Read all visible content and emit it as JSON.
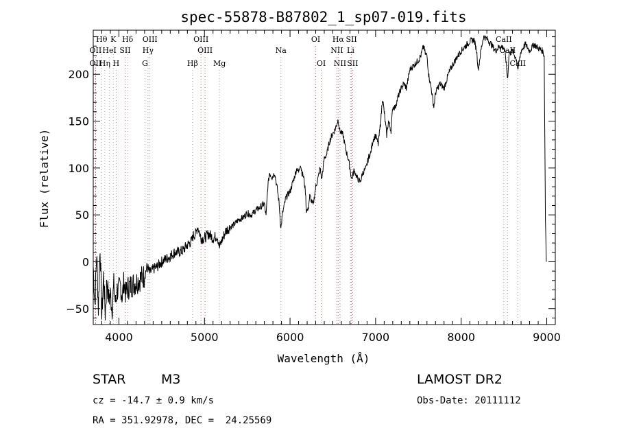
{
  "chart_data": {
    "type": "line",
    "title": "spec-55878-B87802_1_sp07-019.fits",
    "xlabel": "Wavelength (Å)",
    "ylabel": "Flux (relative)",
    "xlim": [
      3700,
      9100
    ],
    "ylim": [
      -67,
      247
    ],
    "xticks": [
      4000,
      5000,
      6000,
      7000,
      8000,
      9000
    ],
    "yticks": [
      -50,
      0,
      50,
      100,
      150,
      200
    ],
    "grid": false,
    "series": [
      {
        "name": "flux",
        "points": [
          [
            3700,
            -5
          ],
          [
            3720,
            -45
          ],
          [
            3740,
            10
          ],
          [
            3760,
            -50
          ],
          [
            3780,
            18
          ],
          [
            3800,
            -60
          ],
          [
            3820,
            -15
          ],
          [
            3840,
            -55
          ],
          [
            3860,
            -20
          ],
          [
            3880,
            -40
          ],
          [
            3900,
            -35
          ],
          [
            3920,
            -50
          ],
          [
            3940,
            -25
          ],
          [
            3960,
            -45
          ],
          [
            3980,
            -30
          ],
          [
            4000,
            -30
          ],
          [
            4020,
            -25
          ],
          [
            4040,
            -38
          ],
          [
            4060,
            -20
          ],
          [
            4080,
            -35
          ],
          [
            4100,
            -28
          ],
          [
            4150,
            -25
          ],
          [
            4200,
            -22
          ],
          [
            4250,
            -18
          ],
          [
            4300,
            -15
          ],
          [
            4330,
            -5
          ],
          [
            4360,
            -12
          ],
          [
            4400,
            -8
          ],
          [
            4450,
            -5
          ],
          [
            4500,
            0
          ],
          [
            4550,
            3
          ],
          [
            4600,
            6
          ],
          [
            4650,
            10
          ],
          [
            4700,
            10
          ],
          [
            4750,
            12
          ],
          [
            4800,
            18
          ],
          [
            4850,
            22
          ],
          [
            4870,
            28
          ],
          [
            4900,
            30
          ],
          [
            4920,
            38
          ],
          [
            4960,
            25
          ],
          [
            5000,
            25
          ],
          [
            5050,
            30
          ],
          [
            5100,
            25
          ],
          [
            5150,
            28
          ],
          [
            5175,
            15
          ],
          [
            5200,
            22
          ],
          [
            5250,
            33
          ],
          [
            5300,
            37
          ],
          [
            5350,
            40
          ],
          [
            5400,
            45
          ],
          [
            5450,
            47
          ],
          [
            5500,
            52
          ],
          [
            5550,
            50
          ],
          [
            5600,
            55
          ],
          [
            5650,
            58
          ],
          [
            5700,
            62
          ],
          [
            5720,
            48
          ],
          [
            5740,
            80
          ],
          [
            5760,
            95
          ],
          [
            5790,
            90
          ],
          [
            5820,
            95
          ],
          [
            5850,
            78
          ],
          [
            5870,
            65
          ],
          [
            5893,
            35
          ],
          [
            5910,
            50
          ],
          [
            5950,
            68
          ],
          [
            6000,
            75
          ],
          [
            6050,
            90
          ],
          [
            6080,
            100
          ],
          [
            6100,
            95
          ],
          [
            6120,
            105
          ],
          [
            6140,
            95
          ],
          [
            6160,
            90
          ],
          [
            6180,
            75
          ],
          [
            6190,
            55
          ],
          [
            6210,
            55
          ],
          [
            6230,
            70
          ],
          [
            6270,
            60
          ],
          [
            6300,
            80
          ],
          [
            6330,
            90
          ],
          [
            6350,
            100
          ],
          [
            6370,
            88
          ],
          [
            6400,
            110
          ],
          [
            6430,
            115
          ],
          [
            6460,
            128
          ],
          [
            6490,
            135
          ],
          [
            6520,
            140
          ],
          [
            6540,
            145
          ],
          [
            6563,
            152
          ],
          [
            6580,
            140
          ],
          [
            6620,
            135
          ],
          [
            6650,
            120
          ],
          [
            6680,
            110
          ],
          [
            6700,
            100
          ],
          [
            6720,
            88
          ],
          [
            6750,
            98
          ],
          [
            6780,
            90
          ],
          [
            6820,
            85
          ],
          [
            6850,
            95
          ],
          [
            6890,
            100
          ],
          [
            6920,
            112
          ],
          [
            6940,
            115
          ],
          [
            6970,
            130
          ],
          [
            7000,
            135
          ],
          [
            7030,
            125
          ],
          [
            7060,
            150
          ],
          [
            7080,
            175
          ],
          [
            7100,
            160
          ],
          [
            7130,
            135
          ],
          [
            7150,
            150
          ],
          [
            7180,
            140
          ],
          [
            7200,
            165
          ],
          [
            7230,
            165
          ],
          [
            7260,
            175
          ],
          [
            7300,
            185
          ],
          [
            7330,
            190
          ],
          [
            7360,
            185
          ],
          [
            7400,
            205
          ],
          [
            7450,
            210
          ],
          [
            7500,
            215
          ],
          [
            7530,
            220
          ],
          [
            7560,
            230
          ],
          [
            7580,
            222
          ],
          [
            7600,
            220
          ],
          [
            7620,
            200
          ],
          [
            7650,
            185
          ],
          [
            7680,
            165
          ],
          [
            7700,
            180
          ],
          [
            7750,
            190
          ],
          [
            7800,
            185
          ],
          [
            7850,
            200
          ],
          [
            7900,
            210
          ],
          [
            7950,
            218
          ],
          [
            8000,
            225
          ],
          [
            8050,
            230
          ],
          [
            8100,
            235
          ],
          [
            8150,
            237
          ],
          [
            8180,
            225
          ],
          [
            8200,
            205
          ],
          [
            8230,
            225
          ],
          [
            8260,
            240
          ],
          [
            8300,
            238
          ],
          [
            8350,
            232
          ],
          [
            8400,
            225
          ],
          [
            8450,
            230
          ],
          [
            8500,
            228
          ],
          [
            8520,
            218
          ],
          [
            8542,
            195
          ],
          [
            8560,
            222
          ],
          [
            8600,
            225
          ],
          [
            8650,
            215
          ],
          [
            8662,
            205
          ],
          [
            8700,
            225
          ],
          [
            8750,
            232
          ],
          [
            8800,
            225
          ],
          [
            8850,
            232
          ],
          [
            8900,
            228
          ],
          [
            8950,
            225
          ],
          [
            8970,
            220
          ],
          [
            8985,
            45
          ],
          [
            8995,
            0
          ]
        ]
      }
    ],
    "spectral_lines": [
      {
        "name": "Hθ",
        "wavelength": 3798,
        "row": 0,
        "color": "#a0a0a0"
      },
      {
        "name": "K",
        "wavelength": 3934,
        "row": 0,
        "color": "#a0a0a0"
      },
      {
        "name": "Hδ",
        "wavelength": 4102,
        "row": 0,
        "color": "#a0a0a0"
      },
      {
        "name": "OIII",
        "wavelength": 4363,
        "row": 0,
        "color": "#a0a0a0"
      },
      {
        "name": "OIII",
        "wavelength": 4959,
        "row": 0,
        "color": "#c86464"
      },
      {
        "name": "OI",
        "wavelength": 6300,
        "row": 0,
        "color": "#c86464"
      },
      {
        "name": "Hα",
        "wavelength": 6563,
        "row": 0,
        "color": "#c86464"
      },
      {
        "name": "SII",
        "wavelength": 6717,
        "row": 0,
        "color": "#c86464"
      },
      {
        "name": "CaII",
        "wavelength": 8498,
        "row": 0,
        "color": "#a0a0a0"
      },
      {
        "name": "OII",
        "wavelength": 3727,
        "row": 1,
        "color": "#c86464"
      },
      {
        "name": "HeI",
        "wavelength": 3889,
        "row": 1,
        "color": "#a0a0a0"
      },
      {
        "name": "SII",
        "wavelength": 4072,
        "row": 1,
        "color": "#c86464"
      },
      {
        "name": "Hγ",
        "wavelength": 4340,
        "row": 1,
        "color": "#a0a0a0"
      },
      {
        "name": "OIII",
        "wavelength": 5007,
        "row": 1,
        "color": "#c86464"
      },
      {
        "name": "Na",
        "wavelength": 5893,
        "row": 1,
        "color": "#a0a0a0"
      },
      {
        "name": "NII",
        "wavelength": 6548,
        "row": 1,
        "color": "#c86464"
      },
      {
        "name": "Li",
        "wavelength": 6708,
        "row": 1,
        "color": "#a0a0a0"
      },
      {
        "name": "CaII",
        "wavelength": 8542,
        "row": 1,
        "color": "#a0a0a0"
      },
      {
        "name": "OII",
        "wavelength": 3727,
        "row": 2,
        "color": "#c86464"
      },
      {
        "name": "Hη",
        "wavelength": 3835,
        "row": 2,
        "color": "#a0a0a0"
      },
      {
        "name": "H",
        "wavelength": 3968,
        "row": 2,
        "color": "#a0a0a0"
      },
      {
        "name": "G",
        "wavelength": 4305,
        "row": 2,
        "color": "#a0a0a0"
      },
      {
        "name": "Hβ",
        "wavelength": 4861,
        "row": 2,
        "color": "#a0a0a0"
      },
      {
        "name": "Mg",
        "wavelength": 5175,
        "row": 2,
        "color": "#a0a0a0"
      },
      {
        "name": "OI",
        "wavelength": 6364,
        "row": 2,
        "color": "#c86464"
      },
      {
        "name": "NII",
        "wavelength": 6584,
        "row": 2,
        "color": "#c86464"
      },
      {
        "name": "SII",
        "wavelength": 6731,
        "row": 2,
        "color": "#c86464"
      },
      {
        "name": "CaII",
        "wavelength": 8662,
        "row": 2,
        "color": "#a0a0a0"
      }
    ]
  },
  "info": {
    "object_class": "STAR",
    "subclass": "M3",
    "survey": "LAMOST DR2",
    "cz": "cz = -14.7 ± 0.9 km/s",
    "obs_date": "Obs-Date: 20111112",
    "coords": "RA = 351.92978, DEC =  24.25569"
  }
}
